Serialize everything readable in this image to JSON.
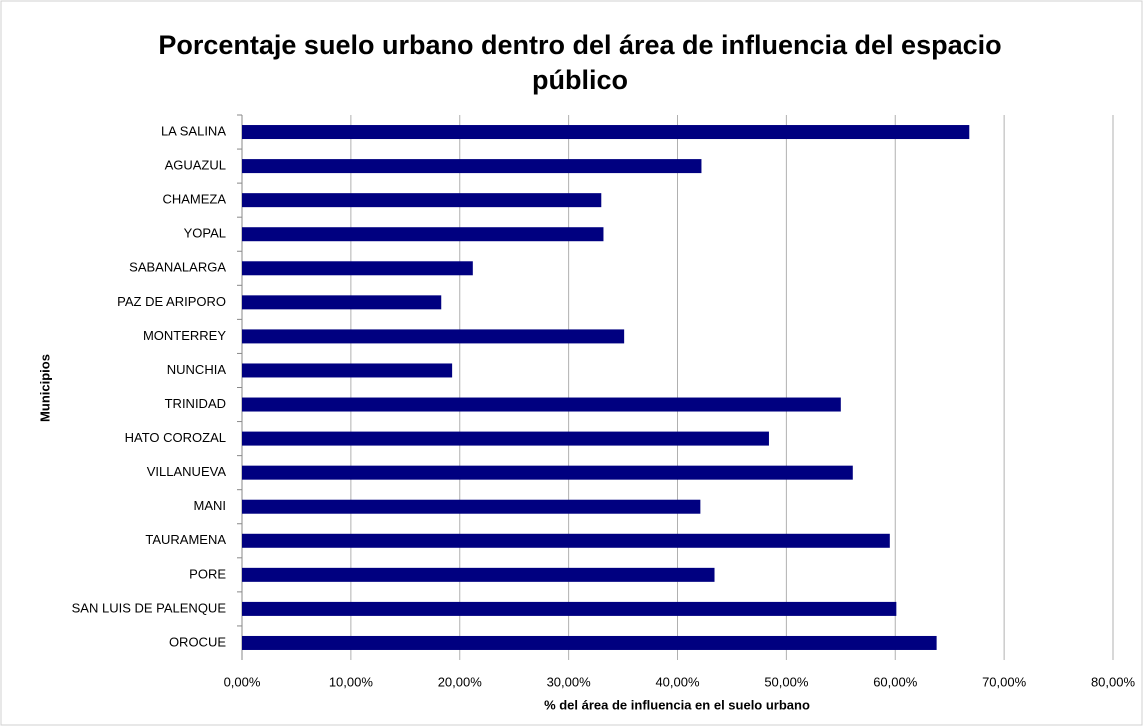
{
  "chart_data": {
    "type": "barh",
    "title": "Porcentaje suelo urbano dentro del área de influencia del espacio público",
    "x_label": "% del área de influencia en el suelo urbano",
    "y_label": "Municipios",
    "categories": [
      "LA SALINA",
      "AGUAZUL",
      "CHAMEZA",
      "YOPAL",
      "SABANALARGA",
      "PAZ DE ARIPORO",
      "MONTERREY",
      "NUNCHIA",
      "TRINIDAD",
      "HATO COROZAL",
      "VILLANUEVA",
      "MANI",
      "TAURAMENA",
      "PORE",
      "SAN LUIS DE PALENQUE",
      "OROCUE"
    ],
    "values": [
      66.8,
      42.2,
      33.0,
      33.2,
      21.2,
      18.3,
      35.1,
      19.3,
      55.0,
      48.4,
      56.1,
      42.1,
      59.5,
      43.4,
      60.1,
      63.8
    ],
    "color": "#000080",
    "xlim": [
      0,
      80
    ],
    "xticks": [
      {
        "value": 0,
        "label": "0,00%"
      },
      {
        "value": 10,
        "label": "10,00%"
      },
      {
        "value": 20,
        "label": "20,00%"
      },
      {
        "value": 30,
        "label": "30,00%"
      },
      {
        "value": 40,
        "label": "40,00%"
      },
      {
        "value": 50,
        "label": "50,00%"
      },
      {
        "value": 60,
        "label": "60,00%"
      },
      {
        "value": 70,
        "label": "70,00%"
      },
      {
        "value": 80,
        "label": "80,00%"
      }
    ],
    "grid": true
  }
}
